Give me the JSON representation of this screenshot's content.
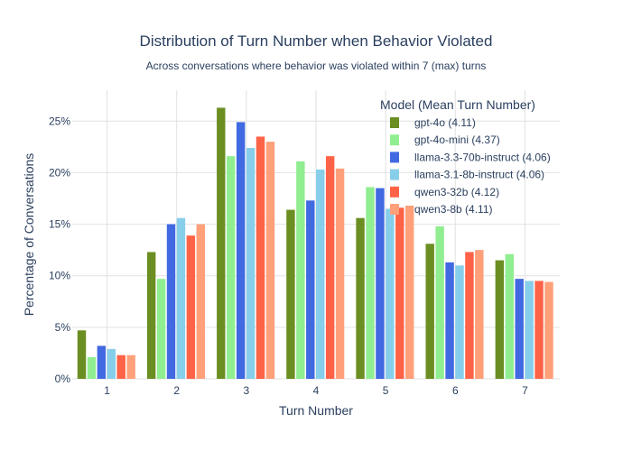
{
  "chart_data": {
    "type": "bar",
    "title": "Distribution of Turn Number when Behavior Violated",
    "subtitle": "Across conversations where behavior was violated within 7 (max) turns",
    "xlabel": "Turn Number",
    "ylabel": "Percentage of Conversations",
    "ylim": [
      0,
      28
    ],
    "y_ticks": [
      0,
      5,
      10,
      15,
      20,
      25
    ],
    "y_tick_labels": [
      "0%",
      "5%",
      "10%",
      "15%",
      "20%",
      "25%"
    ],
    "categories": [
      "1",
      "2",
      "3",
      "4",
      "5",
      "6",
      "7"
    ],
    "legend_title": "Model (Mean Turn Number)",
    "legend_position": "top-right",
    "grid": true,
    "series": [
      {
        "name": "gpt-4o (4.11)",
        "color": "#6b8e23",
        "values": [
          4.7,
          12.3,
          26.3,
          16.4,
          15.6,
          13.1,
          11.5
        ]
      },
      {
        "name": "gpt-4o-mini (4.37)",
        "color": "#90ee90",
        "values": [
          2.1,
          9.7,
          21.6,
          21.1,
          18.6,
          14.8,
          12.1
        ]
      },
      {
        "name": "llama-3.3-70b-instruct (4.06)",
        "color": "#4169e1",
        "values": [
          3.2,
          15.0,
          24.9,
          17.3,
          18.5,
          11.3,
          9.7
        ]
      },
      {
        "name": "llama-3.1-8b-instruct (4.06)",
        "color": "#87ceeb",
        "values": [
          2.9,
          15.6,
          22.4,
          20.3,
          16.5,
          11.0,
          9.5
        ]
      },
      {
        "name": "qwen3-32b (4.12)",
        "color": "#ff6347",
        "values": [
          2.3,
          13.9,
          23.5,
          21.6,
          16.6,
          12.3,
          9.5
        ]
      },
      {
        "name": "qwen3-8b (4.11)",
        "color": "#ffa07a",
        "values": [
          2.3,
          15.0,
          23.0,
          20.4,
          16.8,
          12.5,
          9.4
        ]
      }
    ]
  }
}
